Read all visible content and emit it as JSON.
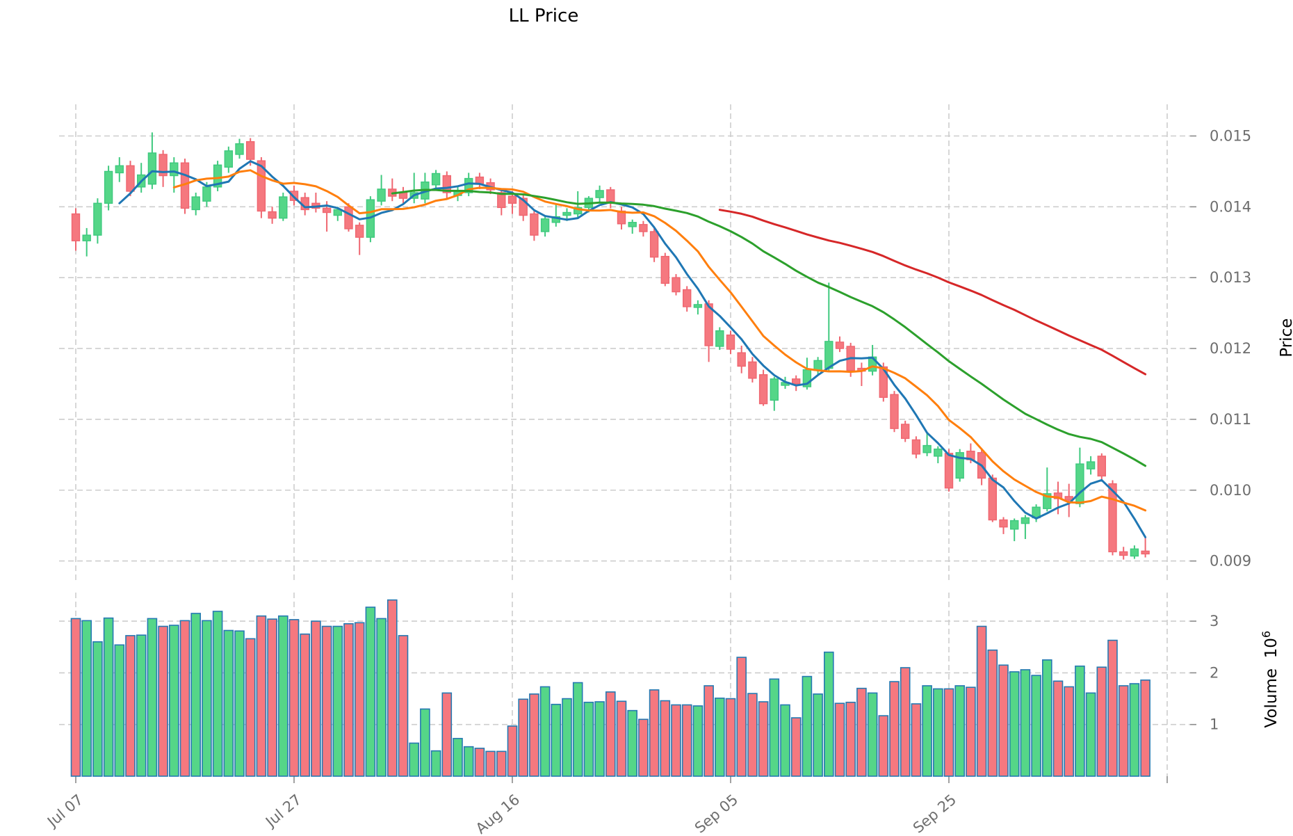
{
  "title": "LL Price",
  "axes": {
    "price_label": "Price",
    "volume_label": "Volume  10",
    "volume_label_exp": "6"
  },
  "style": {
    "up_fill": "#55d688",
    "up_edge": "#3ec97e",
    "down_fill": "#f5787f",
    "down_edge": "#ef6670",
    "volume_edge": "#2579b2",
    "grid_color": "#cdcdcd",
    "tick_text_color": "#6d6d6d",
    "tick_mark_color": "#8a8a8a",
    "ma_colors": [
      "#1f77b4",
      "#ff7f0e",
      "#2ca02c",
      "#d62728"
    ]
  },
  "chart_data": {
    "type": "candlestick",
    "title": "LL Price",
    "grid": true,
    "price_axis": {
      "label": "Price",
      "tick_labels": [
        "0.015",
        "0.014",
        "0.013",
        "0.012",
        "0.011",
        "0.010",
        "0.009"
      ],
      "tick_values": [
        0.015,
        0.014,
        0.013,
        0.012,
        0.011,
        0.01,
        0.009
      ],
      "ylim": [
        0.0088,
        0.0154
      ],
      "side": "right"
    },
    "volume_axis": {
      "label": "Volume 10^6",
      "tick_labels": [
        "3",
        "2",
        "1"
      ],
      "tick_values": [
        3,
        2,
        1
      ],
      "unit_millions": true,
      "ylim": [
        0,
        3.55
      ],
      "side": "right"
    },
    "x_axis": {
      "ticks": [
        {
          "i": 0,
          "label": "Jul 07"
        },
        {
          "i": 20,
          "label": "Jul 27"
        },
        {
          "i": 40,
          "label": "Aug 16"
        },
        {
          "i": 60,
          "label": "Sep 05"
        },
        {
          "i": 80,
          "label": "Sep 25"
        },
        {
          "i": 100,
          "label": ""
        }
      ],
      "label_rotation_deg": 40
    },
    "moving_averages": {
      "windows": [
        5,
        10,
        30,
        60
      ],
      "source": "close",
      "colors": [
        "#1f77b4",
        "#ff7f0e",
        "#2ca02c",
        "#d62728"
      ]
    },
    "candle_columns": [
      "open",
      "high",
      "low",
      "close",
      "volume_millions"
    ],
    "candles": [
      [
        0.0139,
        0.01398,
        0.01338,
        0.01352,
        3.05
      ],
      [
        0.01352,
        0.0137,
        0.0133,
        0.0136,
        3.01
      ],
      [
        0.0136,
        0.01412,
        0.01348,
        0.01405,
        2.6
      ],
      [
        0.01405,
        0.01458,
        0.01395,
        0.0145,
        3.06
      ],
      [
        0.01448,
        0.0147,
        0.01435,
        0.01458,
        2.54
      ],
      [
        0.01458,
        0.01465,
        0.01415,
        0.01422,
        2.72
      ],
      [
        0.01428,
        0.01462,
        0.0142,
        0.01445,
        2.73
      ],
      [
        0.01432,
        0.01505,
        0.01425,
        0.01476,
        3.05
      ],
      [
        0.01474,
        0.0148,
        0.01428,
        0.01444,
        2.9
      ],
      [
        0.01444,
        0.0147,
        0.0142,
        0.01462,
        2.92
      ],
      [
        0.01462,
        0.01468,
        0.0139,
        0.01398,
        3.01
      ],
      [
        0.01396,
        0.0142,
        0.01388,
        0.01414,
        3.15
      ],
      [
        0.01408,
        0.01435,
        0.014,
        0.01428,
        3.01
      ],
      [
        0.01428,
        0.01465,
        0.01422,
        0.01459,
        3.19
      ],
      [
        0.01456,
        0.01485,
        0.01448,
        0.01479,
        2.82
      ],
      [
        0.01474,
        0.01496,
        0.01468,
        0.01489,
        2.81
      ],
      [
        0.01492,
        0.01497,
        0.01458,
        0.01467,
        2.66
      ],
      [
        0.01465,
        0.0147,
        0.01384,
        0.01394,
        3.1
      ],
      [
        0.01393,
        0.014,
        0.01376,
        0.01384,
        3.04
      ],
      [
        0.01384,
        0.0142,
        0.0138,
        0.01414,
        3.1
      ],
      [
        0.01422,
        0.0143,
        0.01402,
        0.01409,
        3.03
      ],
      [
        0.01413,
        0.0142,
        0.01388,
        0.01396,
        2.75
      ],
      [
        0.01405,
        0.0142,
        0.01392,
        0.01398,
        3.0
      ],
      [
        0.01398,
        0.01408,
        0.01365,
        0.01392,
        2.9
      ],
      [
        0.01388,
        0.014,
        0.0138,
        0.01396,
        2.9
      ],
      [
        0.014,
        0.01405,
        0.01365,
        0.01369,
        2.95
      ],
      [
        0.01374,
        0.01378,
        0.01332,
        0.01357,
        2.97
      ],
      [
        0.01357,
        0.01415,
        0.0135,
        0.0141,
        3.27
      ],
      [
        0.01408,
        0.01445,
        0.01402,
        0.01425,
        3.05
      ],
      [
        0.01425,
        0.0144,
        0.01408,
        0.01415,
        3.41
      ],
      [
        0.0142,
        0.01428,
        0.01405,
        0.01412,
        2.72
      ],
      [
        0.01412,
        0.01448,
        0.01405,
        0.0142,
        0.64
      ],
      [
        0.01411,
        0.01448,
        0.01405,
        0.01435,
        1.3
      ],
      [
        0.01431,
        0.01452,
        0.01424,
        0.01447,
        0.49
      ],
      [
        0.01444,
        0.0145,
        0.01412,
        0.0142,
        1.61
      ],
      [
        0.01416,
        0.0143,
        0.01408,
        0.01423,
        0.73
      ],
      [
        0.0142,
        0.01448,
        0.01415,
        0.0144,
        0.57
      ],
      [
        0.01442,
        0.01448,
        0.01425,
        0.01432,
        0.54
      ],
      [
        0.01434,
        0.0144,
        0.01418,
        0.01424,
        0.48
      ],
      [
        0.0142,
        0.01425,
        0.01388,
        0.01399,
        0.48
      ],
      [
        0.01415,
        0.01422,
        0.0139,
        0.01405,
        0.97
      ],
      [
        0.01412,
        0.01418,
        0.0138,
        0.01388,
        1.49
      ],
      [
        0.0139,
        0.01395,
        0.01352,
        0.0136,
        1.59
      ],
      [
        0.01365,
        0.01388,
        0.01358,
        0.01383,
        1.73
      ],
      [
        0.01378,
        0.01403,
        0.01372,
        0.01386,
        1.39
      ],
      [
        0.01388,
        0.01398,
        0.0138,
        0.01392,
        1.5
      ],
      [
        0.0139,
        0.01422,
        0.01385,
        0.01399,
        1.81
      ],
      [
        0.01399,
        0.01415,
        0.01392,
        0.01412,
        1.43
      ],
      [
        0.01413,
        0.0143,
        0.01405,
        0.01423,
        1.44
      ],
      [
        0.01424,
        0.01428,
        0.01398,
        0.01407,
        1.63
      ],
      [
        0.01394,
        0.014,
        0.01368,
        0.01376,
        1.45
      ],
      [
        0.01372,
        0.01382,
        0.01362,
        0.01378,
        1.27
      ],
      [
        0.01375,
        0.0138,
        0.01358,
        0.01365,
        1.1
      ],
      [
        0.01365,
        0.0137,
        0.01322,
        0.01329,
        1.67
      ],
      [
        0.0133,
        0.01335,
        0.01288,
        0.01292,
        1.46
      ],
      [
        0.013,
        0.01305,
        0.01275,
        0.0128,
        1.38
      ],
      [
        0.01283,
        0.01288,
        0.01252,
        0.01259,
        1.38
      ],
      [
        0.01258,
        0.01268,
        0.01248,
        0.01262,
        1.36
      ],
      [
        0.01263,
        0.01268,
        0.01181,
        0.01204,
        1.75
      ],
      [
        0.01203,
        0.0123,
        0.01198,
        0.01225,
        1.51
      ],
      [
        0.01219,
        0.01225,
        0.01192,
        0.01199,
        1.5
      ],
      [
        0.01194,
        0.01204,
        0.01165,
        0.01175,
        2.3
      ],
      [
        0.01181,
        0.01188,
        0.01152,
        0.01158,
        1.6
      ],
      [
        0.01163,
        0.0117,
        0.01119,
        0.01122,
        1.44
      ],
      [
        0.01127,
        0.0116,
        0.01112,
        0.01157,
        1.88
      ],
      [
        0.01148,
        0.0116,
        0.01143,
        0.01152,
        1.38
      ],
      [
        0.01157,
        0.01162,
        0.0114,
        0.0115,
        1.13
      ],
      [
        0.01146,
        0.01187,
        0.01142,
        0.0117,
        1.93
      ],
      [
        0.01169,
        0.01188,
        0.01162,
        0.01183,
        1.59
      ],
      [
        0.01172,
        0.01293,
        0.01168,
        0.0121,
        2.4
      ],
      [
        0.01209,
        0.01217,
        0.01195,
        0.012,
        1.41
      ],
      [
        0.01203,
        0.01208,
        0.0116,
        0.01169,
        1.43
      ],
      [
        0.01172,
        0.0118,
        0.01147,
        0.01168,
        1.7
      ],
      [
        0.01168,
        0.01205,
        0.01162,
        0.01188,
        1.61
      ],
      [
        0.01174,
        0.0118,
        0.01125,
        0.01131,
        1.17
      ],
      [
        0.01135,
        0.0114,
        0.01082,
        0.01087,
        1.83
      ],
      [
        0.01093,
        0.01098,
        0.01068,
        0.01073,
        2.1
      ],
      [
        0.01071,
        0.01076,
        0.01045,
        0.01051,
        1.4
      ],
      [
        0.01053,
        0.0108,
        0.01048,
        0.01063,
        1.75
      ],
      [
        0.01048,
        0.01062,
        0.01038,
        0.01058,
        1.69
      ],
      [
        0.01052,
        0.01058,
        0.00998,
        0.01003,
        1.69
      ],
      [
        0.01017,
        0.01058,
        0.01012,
        0.01053,
        1.75
      ],
      [
        0.01055,
        0.01066,
        0.01038,
        0.01043,
        1.72
      ],
      [
        0.01053,
        0.01058,
        0.01007,
        0.01017,
        2.9
      ],
      [
        0.01017,
        0.01022,
        0.00955,
        0.00958,
        2.44
      ],
      [
        0.00958,
        0.00962,
        0.00938,
        0.00948,
        2.15
      ],
      [
        0.00945,
        0.0096,
        0.00928,
        0.00957,
        2.02
      ],
      [
        0.00953,
        0.00965,
        0.00931,
        0.00961,
        2.06
      ],
      [
        0.00961,
        0.0098,
        0.00955,
        0.00976,
        1.95
      ],
      [
        0.00974,
        0.01032,
        0.0097,
        0.00995,
        2.25
      ],
      [
        0.00996,
        0.01012,
        0.00966,
        0.00988,
        1.84
      ],
      [
        0.00991,
        0.01009,
        0.00962,
        0.00986,
        1.73
      ],
      [
        0.00981,
        0.0106,
        0.00976,
        0.01037,
        2.13
      ],
      [
        0.0103,
        0.01048,
        0.01022,
        0.0104,
        1.61
      ],
      [
        0.01048,
        0.01052,
        0.01015,
        0.0102,
        2.11
      ],
      [
        0.01009,
        0.01014,
        0.00908,
        0.00913,
        2.63
      ],
      [
        0.00913,
        0.0092,
        0.00902,
        0.00908,
        1.75
      ],
      [
        0.00907,
        0.00922,
        0.00903,
        0.00917,
        1.79
      ],
      [
        0.00914,
        0.00935,
        0.00905,
        0.0091,
        1.86
      ]
    ]
  }
}
